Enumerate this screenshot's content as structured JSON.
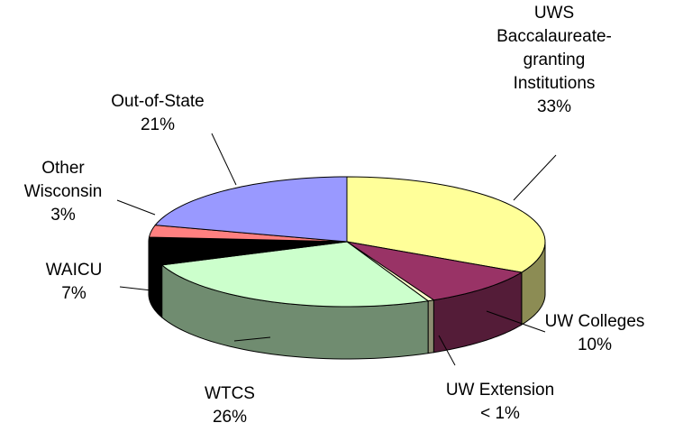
{
  "chart_data": {
    "type": "pie3d",
    "categories": [
      "UWS Baccalaureate-granting Institutions",
      "UW Colleges",
      "UW Extension",
      "WTCS",
      "WAICU",
      "Other Wisconsin",
      "Out-of-State"
    ],
    "values": [
      33,
      10,
      0.5,
      26,
      7,
      3,
      21
    ],
    "value_labels": [
      "33%",
      "10%",
      "< 1%",
      "26%",
      "7%",
      "3%",
      "21%"
    ],
    "colors": [
      "#ffff99",
      "#993366",
      "#ffffcc",
      "#ccffcc",
      "#000000",
      "#ff8080",
      "#9999ff"
    ]
  }
}
